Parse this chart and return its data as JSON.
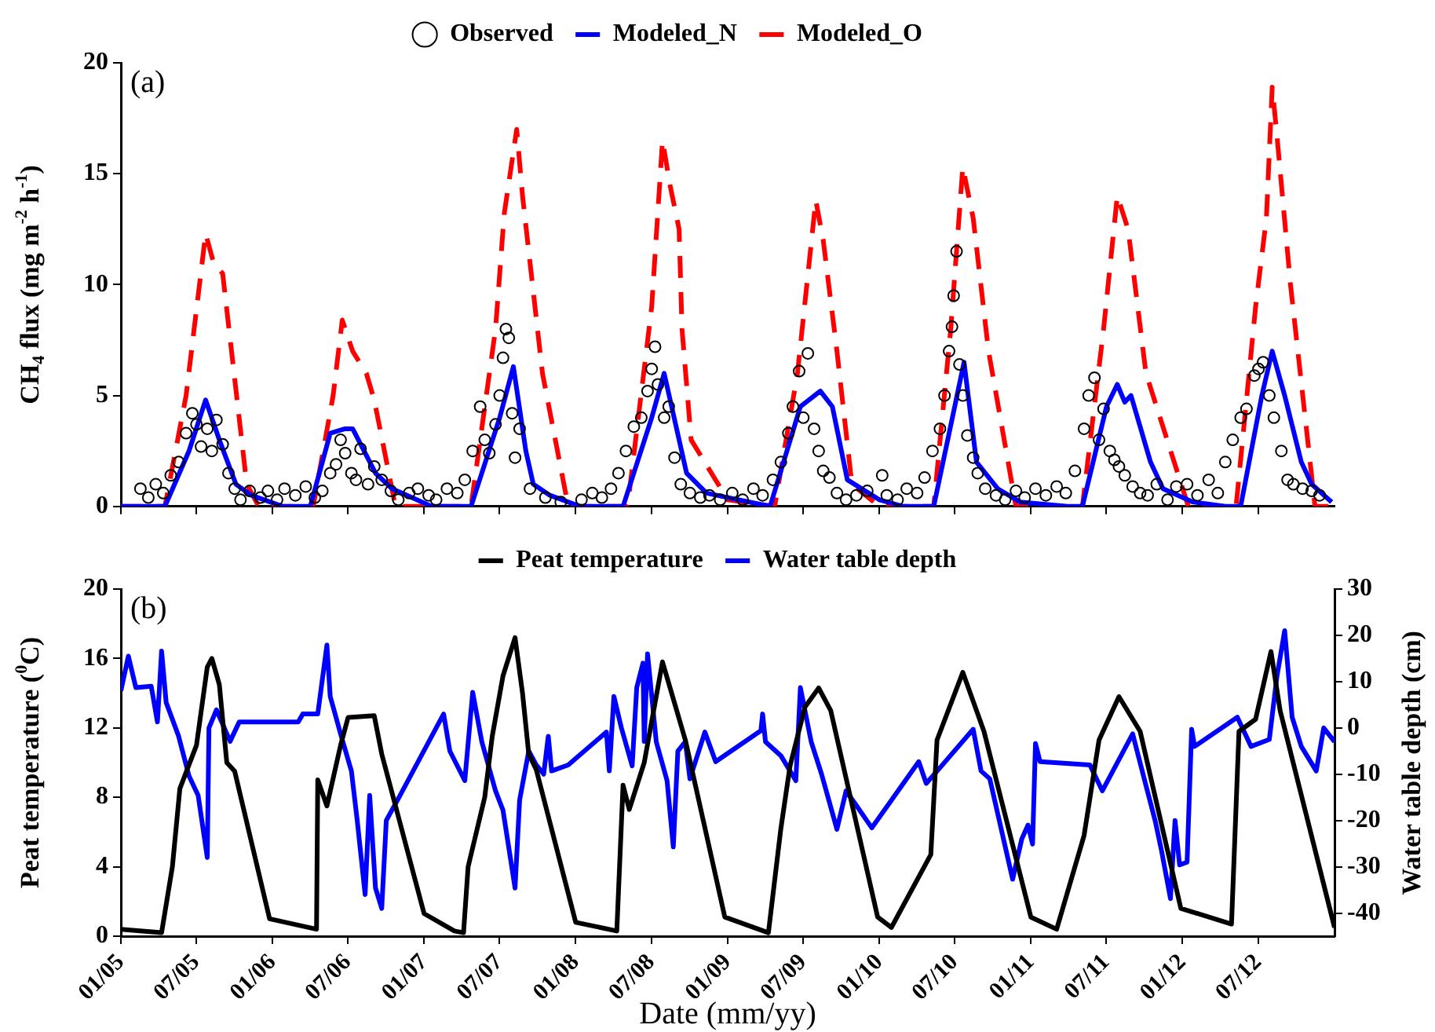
{
  "chart_data": [
    {
      "type": "line",
      "annotations": [
        "(a)"
      ],
      "ylabel": "CH$_{4}$ flux (mg m$^{-2}$ h$^{-1}$)",
      "xlim": [
        "2005-01-01",
        "2013-01-01"
      ],
      "xticks": [
        {
          "value": "2005-01-01",
          "label": null
        },
        {
          "value": "2005-07-01",
          "label": null
        },
        {
          "value": "2006-01-01",
          "label": null
        },
        {
          "value": "2006-07-01",
          "label": null
        },
        {
          "value": "2007-01-01",
          "label": null
        },
        {
          "value": "2007-07-01",
          "label": null
        },
        {
          "value": "2008-01-01",
          "label": null
        },
        {
          "value": "2008-07-01",
          "label": null
        },
        {
          "value": "2009-01-01",
          "label": null
        },
        {
          "value": "2009-07-01",
          "label": null
        },
        {
          "value": "2010-01-01",
          "label": null
        },
        {
          "value": "2010-07-01",
          "label": null
        },
        {
          "value": "2011-01-01",
          "label": null
        },
        {
          "value": "2011-07-01",
          "label": null
        },
        {
          "value": "2012-01-01",
          "label": null
        },
        {
          "value": "2012-07-01",
          "label": null
        }
      ],
      "ylim": [
        0,
        20
      ],
      "yticks": [
        0,
        5,
        10,
        15,
        20
      ],
      "legend": "top",
      "tick_labels": "y",
      "series": [
        {
          "name": "Observed",
          "type": "scatter",
          "marker": "circle",
          "color": "#000000",
          "x": [
            "2005-02-17",
            "2005-03-08",
            "2005-03-26",
            "2005-04-13",
            "2005-05-01",
            "2005-05-20",
            "2005-06-07",
            "2005-06-22",
            "2005-07-02",
            "2005-07-13",
            "2005-07-28",
            "2005-08-08",
            "2005-08-19",
            "2005-09-03",
            "2005-09-17",
            "2005-10-02",
            "2005-10-16",
            "2005-11-07",
            "2005-12-03",
            "2005-12-21",
            "2006-01-12",
            "2006-01-30",
            "2006-02-25",
            "2006-03-22",
            "2006-04-13",
            "2006-05-01",
            "2006-05-20",
            "2006-06-03",
            "2006-06-14",
            "2006-06-25",
            "2006-07-10",
            "2006-07-21",
            "2006-08-01",
            "2006-08-19",
            "2006-09-03",
            "2006-09-21",
            "2006-10-13",
            "2006-10-31",
            "2006-11-26",
            "2006-12-17",
            "2007-01-12",
            "2007-01-30",
            "2007-02-25",
            "2007-03-22",
            "2007-04-09",
            "2007-04-28",
            "2007-05-16",
            "2007-05-27",
            "2007-06-07",
            "2007-06-22",
            "2007-07-02",
            "2007-07-10",
            "2007-07-17",
            "2007-07-24",
            "2007-08-01",
            "2007-08-08",
            "2007-08-19",
            "2007-09-13",
            "2007-10-20",
            "2007-11-26",
            "2008-01-15",
            "2008-02-10",
            "2008-03-04",
            "2008-03-26",
            "2008-04-13",
            "2008-05-01",
            "2008-05-20",
            "2008-06-07",
            "2008-06-22",
            "2008-07-02",
            "2008-07-10",
            "2008-07-17",
            "2008-08-01",
            "2008-08-12",
            "2008-08-26",
            "2008-09-10",
            "2008-10-02",
            "2008-10-27",
            "2008-11-18",
            "2008-12-14",
            "2009-01-12",
            "2009-02-06",
            "2009-03-04",
            "2009-03-26",
            "2009-04-20",
            "2009-05-09",
            "2009-05-27",
            "2009-06-07",
            "2009-06-22",
            "2009-07-02",
            "2009-07-13",
            "2009-07-28",
            "2009-08-08",
            "2009-08-19",
            "2009-09-03",
            "2009-09-21",
            "2009-10-13",
            "2009-11-07",
            "2009-12-03",
            "2010-01-08",
            "2010-01-19",
            "2010-02-14",
            "2010-03-08",
            "2010-04-02",
            "2010-04-20",
            "2010-05-09",
            "2010-05-27",
            "2010-06-07",
            "2010-06-18",
            "2010-06-25",
            "2010-06-29",
            "2010-07-06",
            "2010-07-13",
            "2010-07-21",
            "2010-08-01",
            "2010-08-15",
            "2010-08-26",
            "2010-09-13",
            "2010-10-09",
            "2010-10-31",
            "2010-11-26",
            "2010-12-17",
            "2011-01-12",
            "2011-02-06",
            "2011-03-04",
            "2011-03-26",
            "2011-04-17",
            "2011-05-09",
            "2011-05-20",
            "2011-06-03",
            "2011-06-14",
            "2011-06-25",
            "2011-07-10",
            "2011-07-21",
            "2011-08-01",
            "2011-08-15",
            "2011-09-03",
            "2011-09-21",
            "2011-10-09",
            "2011-10-31",
            "2011-11-26",
            "2011-12-17",
            "2012-01-12",
            "2012-02-06",
            "2012-03-04",
            "2012-03-26",
            "2012-04-13",
            "2012-05-01",
            "2012-05-20",
            "2012-06-03",
            "2012-06-22",
            "2012-07-02",
            "2012-07-13",
            "2012-07-28",
            "2012-08-08",
            "2012-08-26",
            "2012-09-10",
            "2012-09-24",
            "2012-10-16",
            "2012-11-07",
            "2012-11-26"
          ],
          "values": [
            0.8,
            0.4,
            1.0,
            0.6,
            1.4,
            2.0,
            3.3,
            4.2,
            3.7,
            2.7,
            3.5,
            2.5,
            3.9,
            2.8,
            1.5,
            0.8,
            0.3,
            0.7,
            0.4,
            0.7,
            0.3,
            0.8,
            0.5,
            0.9,
            0.4,
            0.7,
            1.5,
            1.9,
            3.0,
            2.4,
            1.5,
            1.2,
            2.6,
            1.0,
            1.8,
            1.2,
            0.7,
            0.3,
            0.6,
            0.8,
            0.5,
            0.3,
            0.8,
            0.6,
            1.2,
            2.5,
            4.5,
            3.0,
            2.4,
            3.7,
            5.0,
            6.7,
            8.0,
            7.6,
            4.2,
            2.2,
            3.5,
            0.8,
            0.4,
            0.2,
            0.3,
            0.6,
            0.4,
            0.8,
            1.5,
            2.5,
            3.6,
            4.0,
            5.2,
            6.2,
            7.2,
            5.5,
            4.0,
            4.5,
            2.2,
            1.0,
            0.6,
            0.4,
            0.5,
            0.3,
            0.6,
            0.3,
            0.8,
            0.5,
            1.2,
            2.0,
            3.3,
            4.5,
            6.1,
            4.0,
            6.9,
            3.5,
            2.5,
            1.6,
            1.3,
            0.6,
            0.3,
            0.5,
            0.7,
            1.4,
            0.5,
            0.3,
            0.8,
            0.6,
            1.3,
            2.5,
            3.5,
            5.0,
            7.0,
            8.1,
            9.5,
            11.5,
            6.4,
            5.0,
            3.2,
            2.2,
            1.5,
            0.8,
            0.5,
            0.3,
            0.7,
            0.4,
            0.8,
            0.5,
            0.9,
            0.6,
            1.6,
            3.5,
            5.0,
            5.8,
            3.0,
            4.4,
            2.5,
            2.1,
            1.8,
            1.4,
            0.9,
            0.6,
            0.5,
            1.0,
            0.3,
            0.9,
            1.0,
            0.5,
            1.2,
            0.6,
            2.0,
            3.0,
            4.0,
            4.4,
            5.9,
            6.2,
            6.5,
            5.0,
            4.0,
            2.5,
            1.2,
            1.0,
            0.8,
            0.7,
            0.5
          ]
        },
        {
          "name": "Modeled_N",
          "type": "line",
          "line_style": "solid",
          "color": "#0000ff",
          "x": [
            "2005-01-01",
            "2005-04-17",
            "2005-06-14",
            "2005-07-24",
            "2005-08-26",
            "2005-10-05",
            "2005-11-11",
            "2006-01-26",
            "2006-04-02",
            "2006-05-20",
            "2006-06-25",
            "2006-07-13",
            "2006-09-06",
            "2006-10-16",
            "2007-01-19",
            "2007-04-24",
            "2007-07-02",
            "2007-08-04",
            "2007-09-03",
            "2007-09-21",
            "2007-10-31",
            "2008-01-12",
            "2008-04-24",
            "2008-07-02",
            "2008-08-01",
            "2008-09-24",
            "2008-11-11",
            "2009-04-13",
            "2009-06-25",
            "2009-08-12",
            "2009-09-10",
            "2009-10-16",
            "2010-01-01",
            "2010-02-28",
            "2010-05-12",
            "2010-07-24",
            "2010-08-23",
            "2010-10-13",
            "2010-12-06",
            "2011-03-30",
            "2011-05-05",
            "2011-07-02",
            "2011-07-28",
            "2011-08-15",
            "2011-08-30",
            "2011-10-16",
            "2011-11-15",
            "2012-01-26",
            "2012-04-13",
            "2012-05-20",
            "2012-07-10",
            "2012-08-04",
            "2012-09-03",
            "2012-10-13",
            "2012-11-07",
            "2012-12-25"
          ],
          "values": [
            0,
            0,
            2.5,
            4.8,
            3.0,
            1.0,
            0.5,
            0,
            0,
            3.3,
            3.5,
            3.5,
            1.5,
            0.8,
            0,
            0,
            4.0,
            6.3,
            2.5,
            1.0,
            0.5,
            0,
            0,
            4.0,
            6.0,
            1.5,
            0.6,
            0,
            4.5,
            5.2,
            4.5,
            1.2,
            0.3,
            0,
            0,
            6.5,
            2.0,
            0.8,
            0.2,
            0,
            0,
            4.5,
            5.5,
            4.7,
            5.0,
            2.0,
            0.8,
            0.2,
            0,
            0,
            5.0,
            7.0,
            5.0,
            2.0,
            1.0,
            0.2
          ]
        },
        {
          "name": "Modeled_O",
          "type": "line",
          "line_style": "dashed",
          "color": "#ff0000",
          "x": [
            "2005-01-01",
            "2005-04-17",
            "2005-06-07",
            "2005-07-24",
            "2005-08-12",
            "2005-09-03",
            "2005-10-31",
            "2005-11-29",
            "2006-04-09",
            "2006-05-27",
            "2006-06-18",
            "2006-07-13",
            "2006-08-15",
            "2006-09-03",
            "2006-10-24",
            "2007-04-24",
            "2007-06-22",
            "2007-07-13",
            "2007-08-12",
            "2007-08-26",
            "2007-10-13",
            "2007-12-14",
            "2008-05-05",
            "2008-07-02",
            "2008-07-28",
            "2008-08-15",
            "2008-09-06",
            "2008-09-13",
            "2008-10-05",
            "2009-01-01",
            "2009-04-24",
            "2009-06-18",
            "2009-08-01",
            "2009-08-19",
            "2009-09-21",
            "2009-10-27",
            "2010-01-01",
            "2010-05-12",
            "2010-06-22",
            "2010-07-21",
            "2010-08-15",
            "2010-09-21",
            "2010-11-26",
            "2011-05-05",
            "2011-06-25",
            "2011-07-28",
            "2011-08-23",
            "2011-10-05",
            "2012-01-15",
            "2012-05-09",
            "2012-06-25",
            "2012-07-21",
            "2012-08-04",
            "2012-08-15",
            "2012-09-17",
            "2012-11-15",
            "2013-01-01"
          ],
          "values": [
            0,
            0,
            5,
            12.3,
            11.0,
            10.5,
            1.0,
            0,
            0,
            5.0,
            8.4,
            7.0,
            6.0,
            4.8,
            0,
            0,
            8,
            13.2,
            17.0,
            14.0,
            6,
            0,
            0,
            9,
            16.5,
            14.5,
            12.5,
            8,
            3,
            0.3,
            0,
            6,
            13.8,
            12,
            7,
            1.0,
            0,
            0,
            8,
            15.3,
            13,
            7,
            0,
            0,
            8,
            14.0,
            12.5,
            6,
            0,
            0,
            9,
            13,
            18.9,
            16.8,
            10,
            0,
            0
          ]
        }
      ]
    },
    {
      "type": "line",
      "annotations": [
        "(b)"
      ],
      "xlabel": "Date (mm/yy)",
      "ylabel": "Peat temperature ($^{0}$C)",
      "y2label": "Water table depth (cm)",
      "xlim": [
        "2005-01-01",
        "2013-01-01"
      ],
      "xticks": [
        {
          "value": "2005-01-01",
          "label": "01/05"
        },
        {
          "value": "2005-07-01",
          "label": "07/05"
        },
        {
          "value": "2006-01-01",
          "label": "01/06"
        },
        {
          "value": "2006-07-01",
          "label": "07/06"
        },
        {
          "value": "2007-01-01",
          "label": "01/07"
        },
        {
          "value": "2007-07-01",
          "label": "07/07"
        },
        {
          "value": "2008-01-01",
          "label": "01/08"
        },
        {
          "value": "2008-07-01",
          "label": "07/08"
        },
        {
          "value": "2009-01-01",
          "label": "01/09"
        },
        {
          "value": "2009-07-01",
          "label": "07/09"
        },
        {
          "value": "2010-01-01",
          "label": "01/10"
        },
        {
          "value": "2010-07-01",
          "label": "07/10"
        },
        {
          "value": "2011-01-01",
          "label": "01/11"
        },
        {
          "value": "2011-07-01",
          "label": "07/11"
        },
        {
          "value": "2012-01-01",
          "label": "01/12"
        },
        {
          "value": "2012-07-01",
          "label": "07/12"
        }
      ],
      "ylim": [
        0,
        20
      ],
      "yticks": [
        0,
        4,
        8,
        12,
        16,
        20
      ],
      "y2lim": [
        -45,
        30
      ],
      "y2ticks": [
        -40,
        -30,
        -20,
        -10,
        0,
        10,
        20,
        30
      ],
      "legend": "top",
      "series": [
        {
          "name": "Peat temperature",
          "type": "line",
          "line_style": "solid",
          "color": "#000000",
          "x": [
            "2005-01-01",
            "2005-04-09",
            "2005-05-05",
            "2005-05-23",
            "2005-07-02",
            "2005-07-28",
            "2005-08-08",
            "2005-08-26",
            "2005-09-13",
            "2005-10-02",
            "2005-12-25",
            "2006-04-17",
            "2006-04-20",
            "2006-05-12",
            "2006-06-14",
            "2006-07-02",
            "2006-09-03",
            "2006-09-21",
            "2007-01-01",
            "2007-03-15",
            "2007-04-06",
            "2007-04-17",
            "2007-05-27",
            "2007-06-14",
            "2007-07-10",
            "2007-08-08",
            "2007-08-26",
            "2007-09-10",
            "2007-09-28",
            "2008-01-01",
            "2008-04-09",
            "2008-04-24",
            "2008-05-09",
            "2008-06-14",
            "2008-07-28",
            "2008-08-19",
            "2008-09-21",
            "2008-12-25",
            "2009-04-09",
            "2009-05-09",
            "2009-05-31",
            "2009-07-06",
            "2009-08-08",
            "2009-09-06",
            "2009-12-28",
            "2010-01-30",
            "2010-05-05",
            "2010-05-20",
            "2010-07-21",
            "2010-09-10",
            "2011-01-01",
            "2011-03-04",
            "2011-05-09",
            "2011-06-14",
            "2011-08-01",
            "2011-09-21",
            "2011-12-28",
            "2012-04-28",
            "2012-05-16",
            "2012-06-25",
            "2012-08-01",
            "2012-08-23",
            "2013-01-01"
          ],
          "values": [
            0.4,
            0.2,
            4,
            8.5,
            11,
            15.5,
            16,
            14.5,
            10,
            9.5,
            1.0,
            0.4,
            9,
            7.5,
            11,
            12.6,
            12.7,
            10.5,
            1.3,
            0.3,
            0.2,
            4,
            8,
            11.5,
            15,
            17.2,
            14,
            10.5,
            9.6,
            0.8,
            0.3,
            8.7,
            7.3,
            10,
            15.8,
            14,
            11.3,
            1.1,
            0.2,
            6.2,
            9.8,
            13.2,
            14.3,
            13,
            1.1,
            0.5,
            4.7,
            11.3,
            15.2,
            11.8,
            1.1,
            0.4,
            5.8,
            11.3,
            13.8,
            11.8,
            1.6,
            0.7,
            11.8,
            12.5,
            16.4,
            13,
            0.5
          ]
        },
        {
          "name": "Water table depth",
          "type": "line",
          "line_style": "solid",
          "axis": "y2",
          "color": "#0000ff",
          "x": [
            "2005-01-01",
            "2005-01-19",
            "2005-02-06",
            "2005-03-15",
            "2005-03-30",
            "2005-04-09",
            "2005-04-20",
            "2005-05-20",
            "2005-06-14",
            "2005-07-06",
            "2005-07-28",
            "2005-08-01",
            "2005-08-19",
            "2005-09-21",
            "2005-10-13",
            "2006-03-04",
            "2006-03-15",
            "2006-04-20",
            "2006-05-12",
            "2006-05-20",
            "2006-06-14",
            "2006-07-10",
            "2006-07-24",
            "2006-08-12",
            "2006-08-23",
            "2006-09-06",
            "2006-09-21",
            "2006-10-02",
            "2006-11-04",
            "2007-02-17",
            "2007-03-04",
            "2007-04-09",
            "2007-04-28",
            "2007-05-20",
            "2007-06-22",
            "2007-07-10",
            "2007-08-08",
            "2007-08-19",
            "2007-09-10",
            "2007-09-28",
            "2007-10-16",
            "2007-10-27",
            "2007-11-04",
            "2007-12-14",
            "2008-03-15",
            "2008-03-22",
            "2008-04-02",
            "2008-04-20",
            "2008-05-16",
            "2008-05-27",
            "2008-06-11",
            "2008-06-14",
            "2008-06-22",
            "2008-07-13",
            "2008-08-08",
            "2008-08-23",
            "2008-09-03",
            "2008-09-21",
            "2008-10-02",
            "2008-11-07",
            "2008-12-03",
            "2009-03-22",
            "2009-03-26",
            "2009-04-02",
            "2009-05-09",
            "2009-06-14",
            "2009-06-25",
            "2009-07-21",
            "2009-08-15",
            "2009-09-21",
            "2009-10-13",
            "2009-11-07",
            "2009-12-14",
            "2010-04-06",
            "2010-04-24",
            "2010-05-31",
            "2010-08-15",
            "2010-09-03",
            "2010-09-24",
            "2010-11-18",
            "2010-12-10",
            "2010-12-25",
            "2011-01-05",
            "2011-01-12",
            "2011-01-23",
            "2011-05-23",
            "2011-06-22",
            "2011-09-03",
            "2011-10-02",
            "2011-10-27",
            "2011-11-11",
            "2011-12-03",
            "2011-12-14",
            "2011-12-25",
            "2012-01-12",
            "2012-01-23",
            "2012-01-30",
            "2012-05-12",
            "2012-06-14",
            "2012-07-28",
            "2012-08-15",
            "2012-09-03",
            "2012-09-21",
            "2012-10-13",
            "2012-11-18",
            "2012-12-06",
            "2013-01-01"
          ],
          "values": [
            8,
            15.5,
            8.7,
            9,
            1.3,
            16.6,
            5.5,
            -1.8,
            -10.4,
            -14.6,
            -28,
            0,
            3.9,
            -2.9,
            1.3,
            1.3,
            3,
            3,
            17.9,
            6.8,
            -1.3,
            -9.3,
            -20,
            -36,
            -14.6,
            -34.6,
            -39,
            -20,
            -14.6,
            3,
            -5,
            -11.4,
            7.7,
            -3,
            -13.6,
            -17.8,
            -34.6,
            -15.6,
            -5,
            -8,
            -10,
            -1.8,
            -9.3,
            -8,
            -0.9,
            -9.3,
            6.8,
            0,
            -8.2,
            8.7,
            14,
            -2.9,
            16,
            -3,
            -11.4,
            -25.7,
            -5,
            -3,
            -11,
            -0.9,
            -7.3,
            -0.6,
            3,
            -3,
            -6,
            -11.4,
            8.7,
            -3,
            -10,
            -21.9,
            -13.6,
            -16.8,
            -21.6,
            -7.3,
            -12,
            -8.2,
            -0.3,
            -9.3,
            -11,
            -32.7,
            -24,
            -21,
            -25.1,
            -3.4,
            -7.3,
            -8,
            -13.6,
            -1.3,
            -11.4,
            -20,
            -26.3,
            -36.9,
            -20,
            -29.6,
            -29,
            -0.3,
            -4,
            2.3,
            -4,
            -2.5,
            10.9,
            21,
            2.3,
            -4,
            -9.3,
            0,
            -3
          ]
        }
      ]
    }
  ]
}
